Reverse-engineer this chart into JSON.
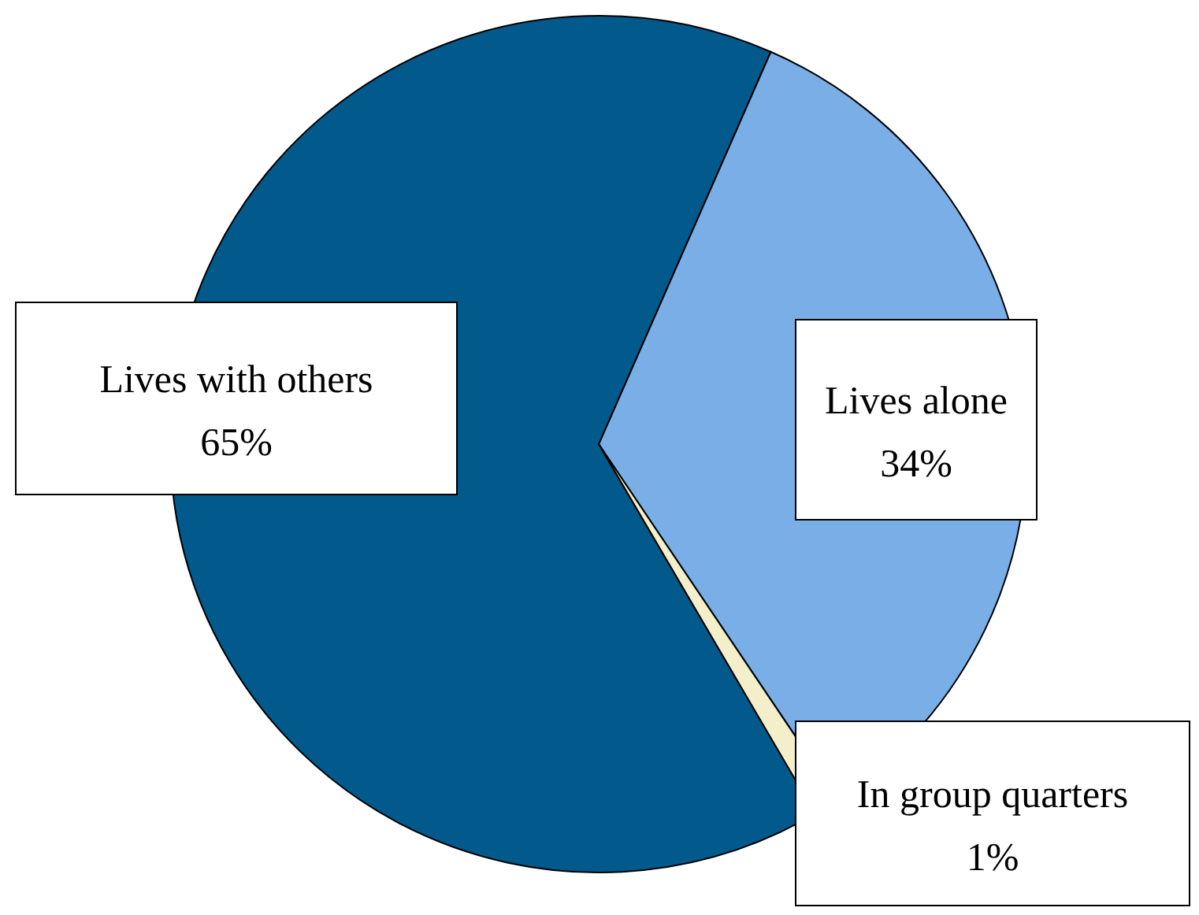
{
  "chart_data": {
    "type": "pie",
    "categories": [
      "Lives alone",
      "In group quarters",
      "Lives with others"
    ],
    "values": [
      34,
      1,
      65
    ],
    "colors": [
      "#7aaee6",
      "#f3efcb",
      "#02598c"
    ],
    "value_labels": [
      "34%",
      "1%",
      "65%"
    ]
  }
}
